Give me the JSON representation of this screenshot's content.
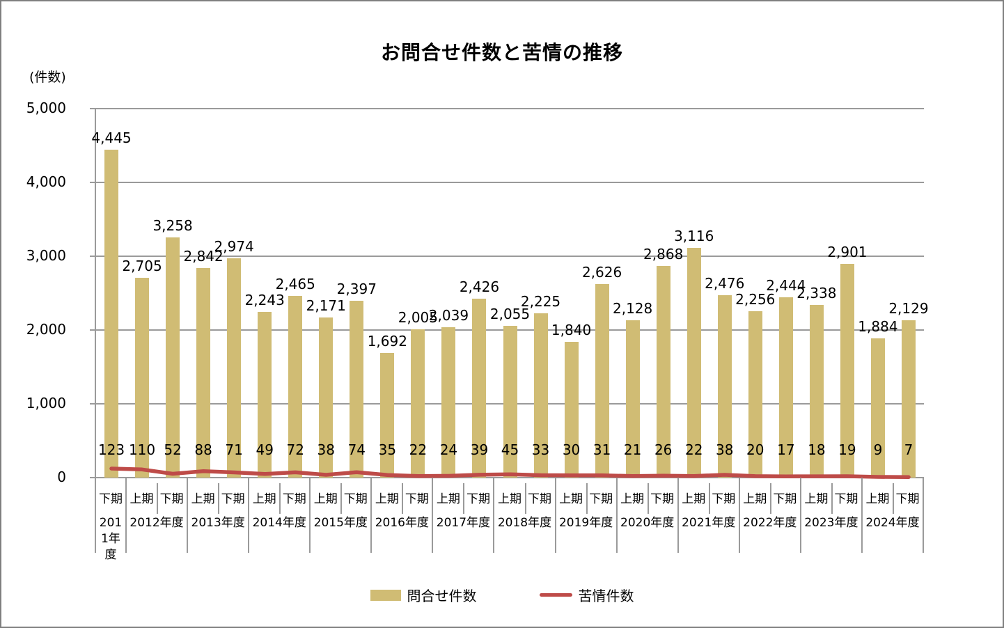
{
  "page": {
    "title": "お問合せ件数と苦情の推移",
    "unit_label": "(件数)"
  },
  "chart_data": {
    "type": "bar",
    "title": "お問合せ件数と苦情の推移",
    "ylabel": "(件数)",
    "ylim": [
      0,
      5000
    ],
    "yticks": [
      0,
      1000,
      2000,
      3000,
      4000,
      5000
    ],
    "ytick_labels": [
      "0",
      "1,000",
      "2,000",
      "3,000",
      "4,000",
      "5,000"
    ],
    "grid": true,
    "legend_position": "bottom",
    "groups": [
      {
        "year_label": "2011年度",
        "periods": [
          "下期"
        ]
      },
      {
        "year_label": "2012年度",
        "periods": [
          "上期",
          "下期"
        ]
      },
      {
        "year_label": "2013年度",
        "periods": [
          "上期",
          "下期"
        ]
      },
      {
        "year_label": "2014年度",
        "periods": [
          "上期",
          "下期"
        ]
      },
      {
        "year_label": "2015年度",
        "periods": [
          "上期",
          "下期"
        ]
      },
      {
        "year_label": "2016年度",
        "periods": [
          "上期",
          "下期"
        ]
      },
      {
        "year_label": "2017年度",
        "periods": [
          "上期",
          "下期"
        ]
      },
      {
        "year_label": "2018年度",
        "periods": [
          "上期",
          "下期"
        ]
      },
      {
        "year_label": "2019年度",
        "periods": [
          "上期",
          "下期"
        ]
      },
      {
        "year_label": "2020年度",
        "periods": [
          "上期",
          "下期"
        ]
      },
      {
        "year_label": "2021年度",
        "periods": [
          "上期",
          "下期"
        ]
      },
      {
        "year_label": "2022年度",
        "periods": [
          "上期",
          "下期"
        ]
      },
      {
        "year_label": "2023年度",
        "periods": [
          "上期",
          "下期"
        ]
      },
      {
        "year_label": "2024年度",
        "periods": [
          "上期",
          "下期"
        ]
      }
    ],
    "series": [
      {
        "name": "問合せ件数",
        "type": "bar",
        "color": "#D0BC74",
        "values": [
          4445,
          2705,
          3258,
          2842,
          2974,
          2243,
          2465,
          2171,
          2397,
          1692,
          2005,
          2039,
          2426,
          2055,
          2225,
          1840,
          2626,
          2128,
          2868,
          3116,
          2476,
          2256,
          2444,
          2338,
          2901,
          1884,
          2129
        ]
      },
      {
        "name": "苦情件数",
        "type": "line",
        "color": "#BE4B48",
        "values": [
          123,
          110,
          52,
          88,
          71,
          49,
          72,
          38,
          74,
          35,
          22,
          24,
          39,
          45,
          33,
          30,
          31,
          21,
          26,
          22,
          38,
          20,
          17,
          18,
          19,
          9,
          7
        ]
      }
    ]
  },
  "colors": {
    "bar": "#D0BC74",
    "line": "#BE4B48",
    "grid": "#9a9a9a",
    "text": "#000000"
  }
}
